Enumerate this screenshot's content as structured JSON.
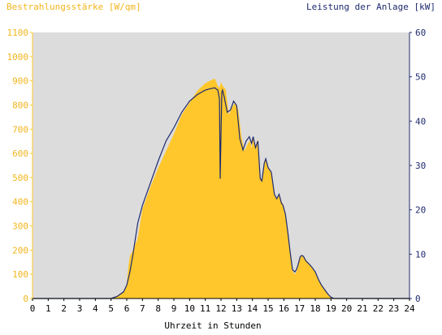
{
  "chart_data": {
    "type": "area",
    "left_axis": {
      "label": "Bestrahlungsstärke [W/qm]",
      "ylim": [
        0,
        1100
      ],
      "ticks": [
        0,
        100,
        200,
        300,
        400,
        500,
        600,
        700,
        800,
        900,
        1000,
        1100
      ],
      "color": "#ffc72c"
    },
    "right_axis": {
      "label": "Leistung der Anlage [kW]",
      "ylim": [
        0,
        60
      ],
      "ticks": [
        0,
        10,
        20,
        30,
        40,
        50,
        60
      ],
      "color": "#1f2a6e"
    },
    "x_axis": {
      "label": "Uhrzeit in Stunden",
      "xlim": [
        0,
        24
      ],
      "ticks": [
        0,
        1,
        2,
        3,
        4,
        5,
        6,
        7,
        8,
        9,
        10,
        11,
        12,
        13,
        14,
        15,
        16,
        17,
        18,
        19,
        20,
        21,
        22,
        23,
        24
      ]
    },
    "grid": false,
    "plot_background": "#dcdcdc",
    "series": [
      {
        "axis": "left",
        "style": "area",
        "color": "#ffc72c",
        "x": [
          0,
          5.0,
          5.4,
          5.8,
          6.0,
          6.1,
          6.2,
          6.4,
          6.7,
          7.0,
          7.5,
          8.0,
          8.5,
          9.0,
          9.5,
          10.0,
          10.5,
          11.0,
          11.3,
          11.6,
          11.8,
          11.9,
          12.0,
          12.1,
          12.3,
          12.5,
          12.7,
          12.9,
          13.1,
          13.3,
          13.5,
          13.7,
          13.85,
          13.95,
          14.05,
          14.2,
          14.35,
          14.5,
          14.6,
          14.75,
          14.85,
          15.0,
          15.2,
          15.4,
          15.55,
          15.7,
          15.85,
          15.95,
          16.1,
          16.25,
          16.4,
          16.55,
          16.7,
          16.8,
          16.9,
          17.05,
          17.15,
          17.25,
          17.4,
          17.6,
          17.8,
          18.0,
          18.2,
          18.4,
          18.6,
          18.8,
          19.0,
          19.2,
          19.4,
          19.6,
          19.8,
          20.0,
          24
        ],
        "y": [
          0,
          0,
          10,
          30,
          60,
          130,
          175,
          200,
          250,
          370,
          460,
          540,
          610,
          680,
          760,
          810,
          860,
          890,
          900,
          910,
          880,
          870,
          895,
          880,
          865,
          760,
          790,
          810,
          780,
          670,
          610,
          640,
          655,
          620,
          665,
          630,
          660,
          500,
          490,
          560,
          575,
          540,
          520,
          430,
          410,
          430,
          400,
          390,
          350,
          280,
          200,
          115,
          100,
          110,
          130,
          170,
          175,
          170,
          160,
          145,
          130,
          110,
          80,
          55,
          35,
          18,
          5,
          0,
          0,
          0,
          0,
          0,
          0
        ]
      },
      {
        "axis": "right",
        "style": "line",
        "color": "#1f2a6e",
        "x": [
          0,
          5.0,
          5.4,
          5.8,
          6.0,
          6.2,
          6.4,
          6.7,
          7.0,
          7.5,
          8.0,
          8.5,
          9.0,
          9.5,
          10.0,
          10.5,
          11.0,
          11.3,
          11.6,
          11.8,
          11.9,
          11.95,
          12.0,
          12.05,
          12.1,
          12.2,
          12.4,
          12.6,
          12.8,
          13.0,
          13.2,
          13.4,
          13.6,
          13.8,
          13.95,
          14.05,
          14.2,
          14.35,
          14.5,
          14.6,
          14.75,
          14.85,
          15.0,
          15.2,
          15.4,
          15.55,
          15.7,
          15.85,
          15.95,
          16.1,
          16.25,
          16.4,
          16.55,
          16.7,
          16.8,
          16.9,
          17.05,
          17.15,
          17.25,
          17.4,
          17.6,
          17.8,
          18.0,
          18.2,
          18.4,
          18.6,
          18.8,
          19.0,
          19.2,
          19.4,
          19.6,
          19.8,
          20.0,
          24
        ],
        "y": [
          0,
          0,
          0.5,
          1.5,
          3.0,
          6.0,
          10.0,
          17.0,
          21.0,
          26.0,
          31.0,
          35.5,
          38.5,
          42.0,
          44.5,
          46.0,
          47.0,
          47.3,
          47.5,
          47.0,
          45.0,
          27.0,
          37.0,
          46.5,
          47.0,
          45.5,
          42.0,
          42.5,
          44.5,
          43.5,
          36.0,
          33.5,
          35.5,
          36.5,
          35.0,
          36.5,
          34.0,
          35.5,
          27.0,
          26.5,
          30.5,
          31.5,
          29.5,
          28.5,
          23.5,
          22.5,
          23.5,
          21.5,
          21.0,
          19.0,
          15.0,
          10.5,
          6.5,
          6.0,
          6.5,
          7.5,
          9.5,
          9.7,
          9.5,
          8.5,
          7.8,
          7.0,
          6.0,
          4.3,
          3.0,
          2.0,
          1.0,
          0.3,
          0,
          0,
          0,
          0,
          0,
          0
        ]
      }
    ]
  }
}
